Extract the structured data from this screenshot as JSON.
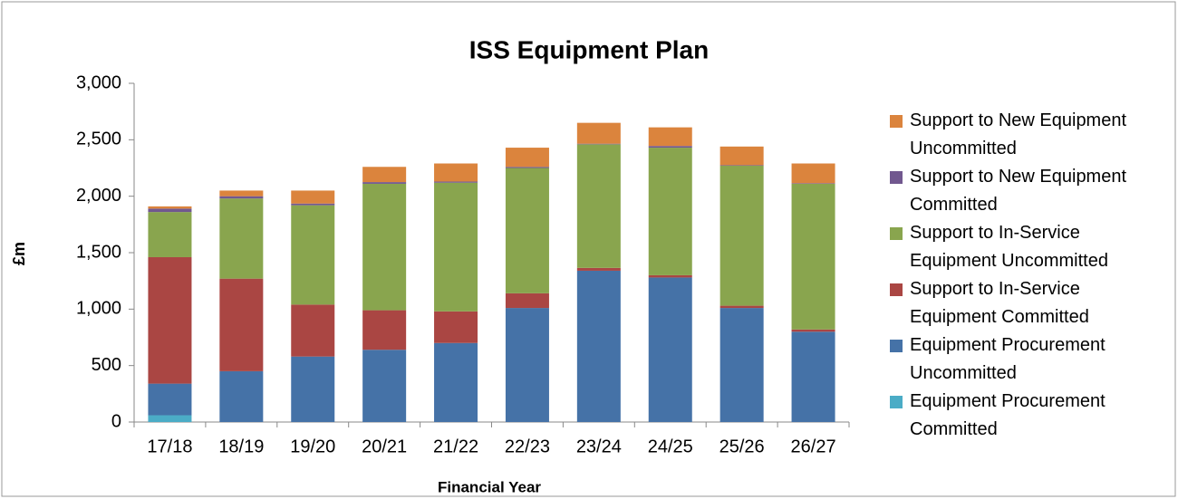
{
  "chart_data": {
    "type": "stacked-bar",
    "title": "ISS Equipment Plan",
    "x_label": "Financial Year",
    "y_label": "£m",
    "categories": [
      "17/18",
      "18/19",
      "19/20",
      "20/21",
      "21/22",
      "22/23",
      "23/24",
      "24/25",
      "25/26",
      "26/27"
    ],
    "series": [
      {
        "name": "Equipment Procurement Committed",
        "color": "#4bacc6",
        "values": [
          60,
          0,
          0,
          0,
          0,
          0,
          0,
          0,
          0,
          0
        ]
      },
      {
        "name": "Equipment Procurement Uncommitted",
        "color": "#4572a7",
        "values": [
          280,
          450,
          580,
          640,
          700,
          1010,
          1340,
          1280,
          1010,
          800
        ]
      },
      {
        "name": "Support to In-Service Equipment Committed",
        "color": "#aa4643",
        "values": [
          1120,
          820,
          460,
          350,
          280,
          130,
          25,
          20,
          20,
          20
        ]
      },
      {
        "name": "Support to In-Service Equipment Uncommitted",
        "color": "#89a54e",
        "values": [
          400,
          710,
          880,
          1120,
          1140,
          1110,
          1095,
          1130,
          1240,
          1290
        ]
      },
      {
        "name": "Support to New Equipment Committed",
        "color": "#71588f",
        "values": [
          30,
          20,
          15,
          15,
          10,
          10,
          5,
          15,
          5,
          5
        ]
      },
      {
        "name": "Support to New Equipment Uncommitted",
        "color": "#db843d",
        "values": [
          20,
          50,
          115,
          135,
          160,
          170,
          185,
          165,
          165,
          175
        ]
      }
    ],
    "ylim": [
      0,
      3000
    ],
    "yticks": [
      0,
      500,
      {
        "value": 1000,
        "label": "1,000"
      },
      {
        "value": 1500,
        "label": "1,500"
      },
      {
        "value": 2000,
        "label": "2,000"
      },
      {
        "value": 2500,
        "label": "2,500"
      },
      {
        "value": 3000,
        "label": "3,000"
      }
    ],
    "grid": false,
    "legend": "right"
  }
}
